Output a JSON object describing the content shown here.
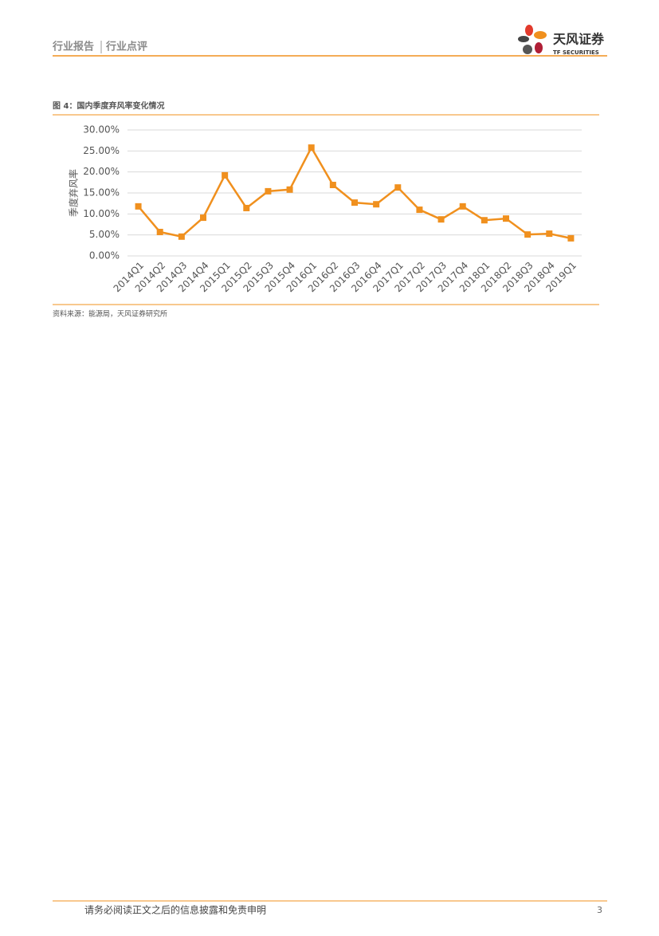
{
  "header": {
    "section": "行业报告",
    "subsection": "行业点评",
    "logo_name": "天风证券",
    "logo_sub": "TF SECURITIES"
  },
  "figure_title": "图 4：国内季度弃风率变化情况",
  "chart_data": {
    "type": "line",
    "y_label": "季度弃风率",
    "categories": [
      "2014Q1",
      "2014Q2",
      "2014Q3",
      "2014Q4",
      "2015Q1",
      "2015Q2",
      "2015Q3",
      "2015Q4",
      "2016Q1",
      "2016Q2",
      "2016Q3",
      "2016Q4",
      "2017Q1",
      "2017Q2",
      "2017Q3",
      "2017Q4",
      "2018Q1",
      "2018Q2",
      "2018Q3",
      "2018Q4",
      "2019Q1"
    ],
    "values": [
      11.8,
      5.7,
      4.6,
      9.1,
      19.2,
      11.4,
      15.4,
      15.8,
      25.8,
      16.9,
      12.7,
      12.3,
      16.3,
      11.0,
      8.7,
      11.8,
      8.5,
      8.9,
      5.1,
      5.3,
      4.2
    ],
    "color": "#f0901e",
    "ylim": [
      0,
      30
    ],
    "yticks": [
      {
        "value": 0,
        "label": "0.00%"
      },
      {
        "value": 5,
        "label": "5.00%"
      },
      {
        "value": 10,
        "label": "10.00%"
      },
      {
        "value": 15,
        "label": "15.00%"
      },
      {
        "value": 20,
        "label": "20.00%"
      },
      {
        "value": 25,
        "label": "25.00%"
      },
      {
        "value": 30,
        "label": "30.00%"
      }
    ],
    "grid": true
  },
  "source": "资料来源：能源局，天风证券研究所",
  "footer": {
    "disclaimer": "请务必阅读正文之后的信息披露和免责申明",
    "page": "3"
  }
}
